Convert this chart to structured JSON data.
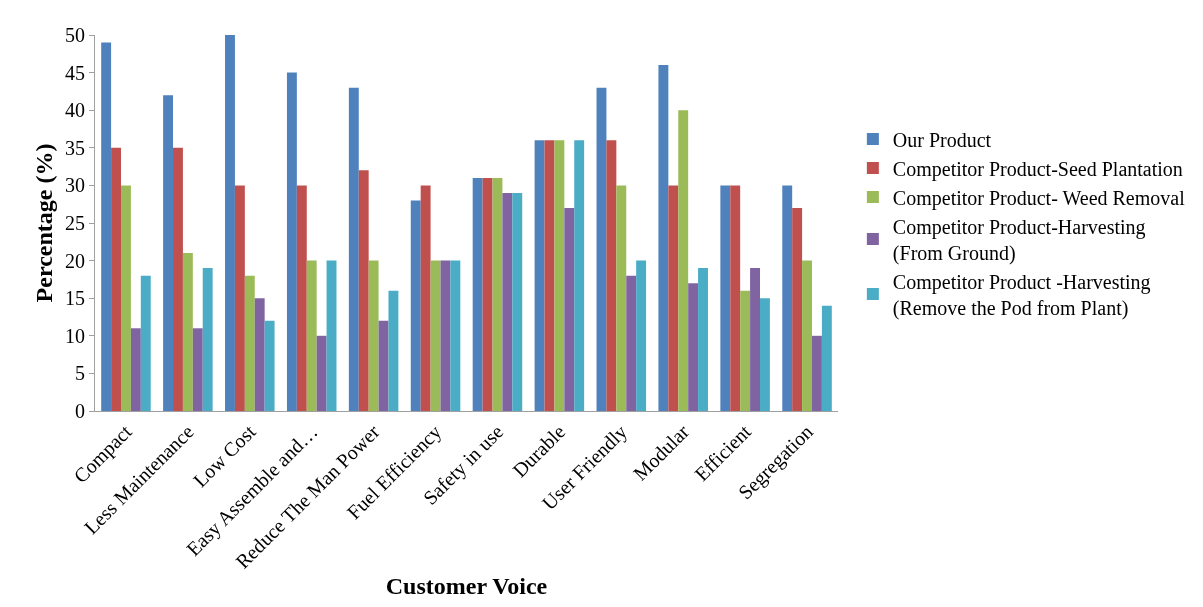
{
  "chart_data": {
    "type": "bar",
    "xlabel": "Customer Voice",
    "ylabel": "Percentage (%)",
    "categories": [
      "Compact",
      "Less Maintenance",
      "Low Cost",
      "Easy Assemble and…",
      "Reduce The Man Power",
      "Fuel Efficiency",
      "Safety in use",
      "Durable",
      "User Friendly",
      "Modular",
      "Efficient",
      "Segregation"
    ],
    "series": [
      {
        "name": "Our Product",
        "color": "#4f81bd",
        "values": [
          49,
          42,
          50,
          45,
          43,
          28,
          31,
          36,
          43,
          46,
          30,
          30
        ]
      },
      {
        "name": "Competitor Product-Seed Plantation",
        "color": "#c0504d",
        "values": [
          35,
          35,
          30,
          30,
          32,
          30,
          31,
          36,
          36,
          30,
          30,
          27
        ]
      },
      {
        "name": "Competitor Product- Weed Removal",
        "color": "#9bbb59",
        "values": [
          30,
          21,
          18,
          20,
          20,
          20,
          31,
          36,
          30,
          40,
          16,
          20
        ]
      },
      {
        "name": "Competitor Product-Harvesting (From Ground)",
        "color": "#8064a2",
        "values": [
          11,
          11,
          15,
          10,
          12,
          20,
          29,
          27,
          18,
          17,
          19,
          10
        ]
      },
      {
        "name": "Competitor Product -Harvesting (Remove the Pod from Plant)",
        "color": "#4bacc6",
        "values": [
          18,
          19,
          12,
          20,
          16,
          20,
          29,
          36,
          20,
          19,
          15,
          14
        ]
      }
    ],
    "ylim": [
      0,
      50
    ],
    "yticks": [
      0,
      5,
      10,
      15,
      20,
      25,
      30,
      35,
      40,
      45,
      50
    ],
    "grid": false,
    "legend": "right"
  }
}
